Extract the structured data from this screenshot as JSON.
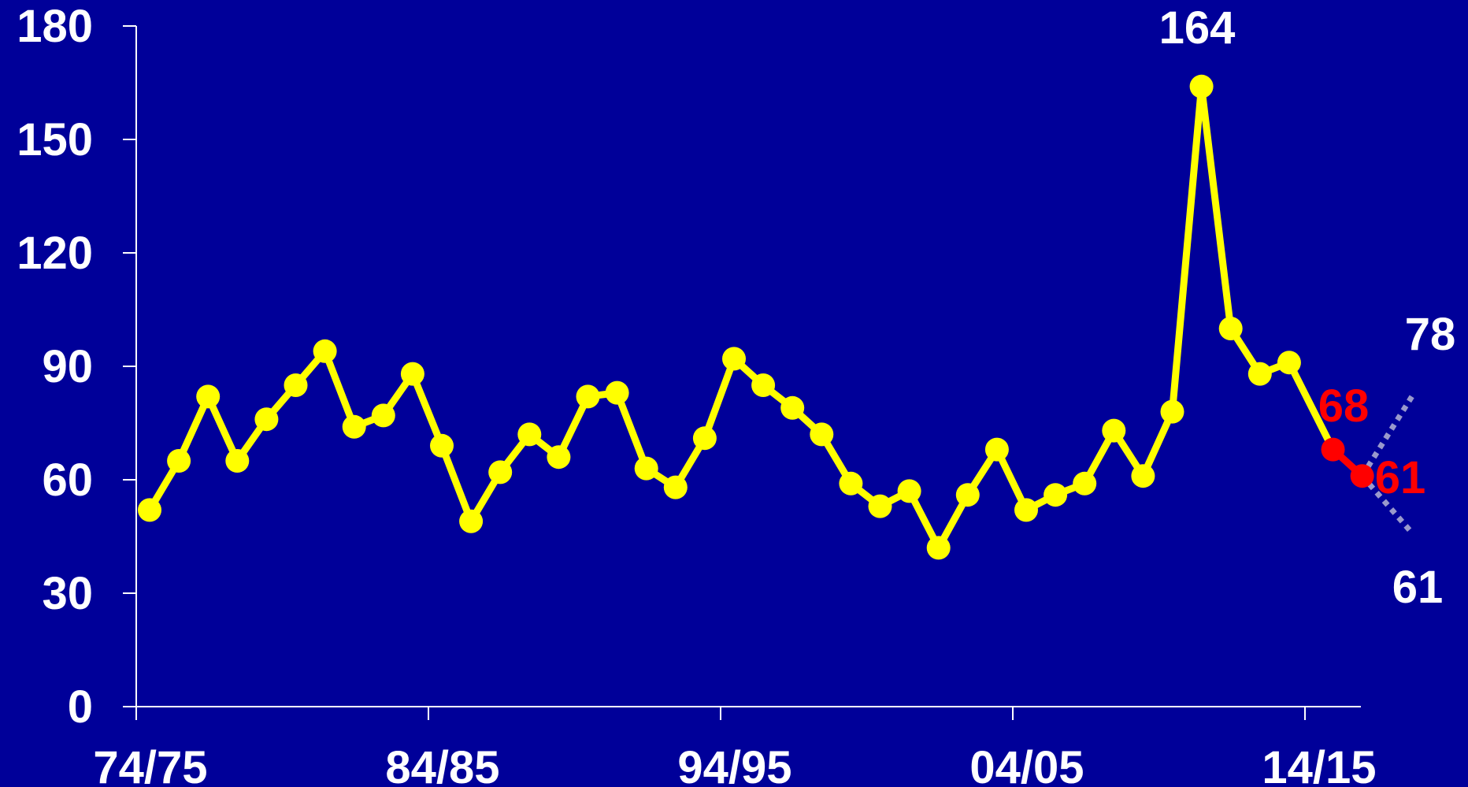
{
  "chart_data": {
    "type": "line",
    "title": "",
    "xlabel": "",
    "ylabel": "",
    "ylim": [
      0,
      180
    ],
    "y_ticks": [
      0,
      30,
      60,
      90,
      120,
      150,
      180
    ],
    "x_tick_labels": [
      "74/75",
      "84/85",
      "94/95",
      "04/05",
      "14/15"
    ],
    "x_tick_indices": [
      0,
      10,
      20,
      30,
      40
    ],
    "grid": false,
    "colors": {
      "background": "#000099",
      "line": "#ffff00",
      "projection_points": "#ff0000",
      "projection_range": "#9999cc",
      "text": "#ffffff",
      "axis": "#ffffff"
    },
    "series": [
      {
        "values": [
          52,
          65,
          82,
          65,
          76,
          85,
          94,
          74,
          77,
          88,
          69,
          49,
          62,
          72,
          66,
          82,
          83,
          63,
          58,
          71,
          92,
          85,
          79,
          72,
          59,
          53,
          57,
          42,
          56,
          68,
          52,
          56,
          59,
          73,
          61,
          78,
          164,
          100,
          88,
          91
        ]
      }
    ],
    "projection": {
      "points": [
        {
          "index": 40.5,
          "value": 68
        },
        {
          "index": 41.5,
          "value": 61
        }
      ],
      "upper": [
        [
          41.5,
          61
        ],
        [
          43.2,
          82
        ]
      ],
      "lower": [
        [
          41.5,
          61
        ],
        [
          43.2,
          46
        ]
      ]
    },
    "annotations": {
      "peak": "164",
      "projection_1": "68",
      "projection_2": "61",
      "upper_bound": "78",
      "lower_bound": "61"
    }
  }
}
